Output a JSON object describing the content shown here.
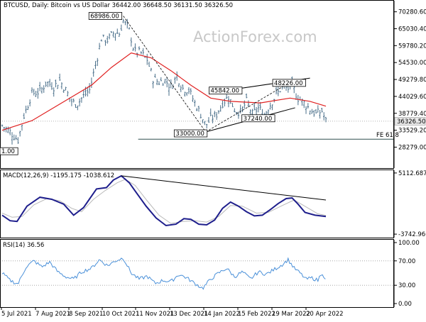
{
  "chart_data": [
    {
      "type": "candlestick",
      "symbol": "BTCUSD",
      "header": "BTCUSD, Daily:  Bitcoin vs US Dollar  36442.00 36648.50 36131.50 36326.50",
      "watermark": "ActionForex.com",
      "ylim": [
        22000,
        73500
      ],
      "y_ticks": [
        70280.6,
        65030.4,
        59780.2,
        54530.0,
        49279.8,
        44029.6,
        38779.4,
        33529.2,
        28279.0
      ],
      "y_tick_labels": [
        "70280.60",
        "65030.40",
        "59780.20",
        "54530.00",
        "49279.80",
        "44029.60",
        "38779.40",
        "33529.20",
        "28279.00"
      ],
      "last_price": 36326.5,
      "last_price_label": "36326.50",
      "x_labels": [
        "5 Jul 2021",
        "7 Aug 2021",
        "8 Sep 2021",
        "10 Oct 2021",
        "11 Nov 2021",
        "13 Dec 2021",
        "14 Jan 2022",
        "15 Feb 2022",
        "19 Mar 2022",
        "20 Apr 2022"
      ],
      "close_series": [
        {
          "day": 0,
          "close": 35000
        },
        {
          "day": 8,
          "close": 33000
        },
        {
          "day": 16,
          "close": 30500
        },
        {
          "day": 22,
          "close": 38000
        },
        {
          "day": 30,
          "close": 45000
        },
        {
          "day": 38,
          "close": 45500
        },
        {
          "day": 45,
          "close": 48500
        },
        {
          "day": 52,
          "close": 47000
        },
        {
          "day": 58,
          "close": 49000
        },
        {
          "day": 64,
          "close": 46000
        },
        {
          "day": 70,
          "close": 42500
        },
        {
          "day": 75,
          "close": 41500
        },
        {
          "day": 80,
          "close": 43500
        },
        {
          "day": 88,
          "close": 46000
        },
        {
          "day": 95,
          "close": 55000
        },
        {
          "day": 100,
          "close": 62000
        },
        {
          "day": 106,
          "close": 61500
        },
        {
          "day": 113,
          "close": 64000
        },
        {
          "day": 118,
          "close": 63500
        },
        {
          "day": 122,
          "close": 67500
        },
        {
          "day": 128,
          "close": 64500
        },
        {
          "day": 133,
          "close": 58000
        },
        {
          "day": 140,
          "close": 57500
        },
        {
          "day": 146,
          "close": 55500
        },
        {
          "day": 152,
          "close": 49500
        },
        {
          "day": 158,
          "close": 48500
        },
        {
          "day": 164,
          "close": 49000
        },
        {
          "day": 170,
          "close": 47000
        },
        {
          "day": 176,
          "close": 50500
        },
        {
          "day": 182,
          "close": 46500
        },
        {
          "day": 188,
          "close": 46000
        },
        {
          "day": 194,
          "close": 42000
        },
        {
          "day": 200,
          "close": 38500
        },
        {
          "day": 205,
          "close": 35000
        },
        {
          "day": 210,
          "close": 37000
        },
        {
          "day": 216,
          "close": 38500
        },
        {
          "day": 222,
          "close": 42000
        },
        {
          "day": 228,
          "close": 44000
        },
        {
          "day": 234,
          "close": 40000
        },
        {
          "day": 240,
          "close": 39000
        },
        {
          "day": 246,
          "close": 42500
        },
        {
          "day": 252,
          "close": 38500
        },
        {
          "day": 258,
          "close": 40500
        },
        {
          "day": 264,
          "close": 38500
        },
        {
          "day": 270,
          "close": 41500
        },
        {
          "day": 276,
          "close": 44500
        },
        {
          "day": 282,
          "close": 47000
        },
        {
          "day": 288,
          "close": 46500
        },
        {
          "day": 292,
          "close": 47500
        },
        {
          "day": 298,
          "close": 43500
        },
        {
          "day": 304,
          "close": 42000
        },
        {
          "day": 310,
          "close": 40000
        },
        {
          "day": 316,
          "close": 38500
        },
        {
          "day": 322,
          "close": 39500
        },
        {
          "day": 326,
          "close": 36326.5
        }
      ],
      "moving_average": [
        {
          "day": 0,
          "value": 33500
        },
        {
          "day": 30,
          "value": 36500
        },
        {
          "day": 60,
          "value": 42000
        },
        {
          "day": 90,
          "value": 47500
        },
        {
          "day": 110,
          "value": 53000
        },
        {
          "day": 130,
          "value": 57500
        },
        {
          "day": 150,
          "value": 56000
        },
        {
          "day": 170,
          "value": 52000
        },
        {
          "day": 190,
          "value": 47500
        },
        {
          "day": 210,
          "value": 43500
        },
        {
          "day": 230,
          "value": 42500
        },
        {
          "day": 260,
          "value": 42000
        },
        {
          "day": 290,
          "value": 43500
        },
        {
          "day": 310,
          "value": 42500
        },
        {
          "day": 326,
          "value": 41000
        }
      ],
      "annotations": [
        {
          "label": "68986.00",
          "day": 122,
          "price": 68986.0
        },
        {
          "label": "45842.00",
          "day": 225,
          "price": 45842.0
        },
        {
          "label": "48226.00",
          "day": 289,
          "price": 48226.0
        },
        {
          "label": "37240.00",
          "day": 258,
          "price": 37240.0
        },
        {
          "label": "33000.00",
          "day": 205,
          "price": 33000.0
        },
        {
          "label": "1.00",
          "day": 8,
          "price": 29000.0
        }
      ],
      "trendlines": [
        {
          "from": {
            "day": 122,
            "price": 68986
          },
          "to": {
            "day": 205,
            "price": 33000
          },
          "style": "dashed"
        },
        {
          "from": {
            "day": 205,
            "price": 33000
          },
          "to": {
            "day": 289,
            "price": 48226
          },
          "style": "dashed"
        },
        {
          "from": {
            "day": 225,
            "price": 45842
          },
          "to": {
            "day": 310,
            "price": 49700
          },
          "style": "solid"
        },
        {
          "from": {
            "day": 205,
            "price": 33000
          },
          "to": {
            "day": 295,
            "price": 40500
          },
          "style": "solid"
        }
      ],
      "fibonacci": {
        "label": "FE 61.8",
        "price": 30750,
        "from_day": 137,
        "to_day": 328
      }
    },
    {
      "type": "line",
      "title": "MACD(12,26,9) -1195.175 -1038.612",
      "ylim": [
        -3742.96,
        5112.687
      ],
      "y_tick_labels": [
        "5112.687",
        "-3742.960"
      ],
      "macd": [
        {
          "day": 0,
          "value": -1000
        },
        {
          "day": 8,
          "value": -1800
        },
        {
          "day": 15,
          "value": -1900
        },
        {
          "day": 25,
          "value": 300
        },
        {
          "day": 38,
          "value": 1600
        },
        {
          "day": 50,
          "value": 1300
        },
        {
          "day": 62,
          "value": 600
        },
        {
          "day": 72,
          "value": -1000
        },
        {
          "day": 82,
          "value": 100
        },
        {
          "day": 95,
          "value": 2800
        },
        {
          "day": 105,
          "value": 3000
        },
        {
          "day": 112,
          "value": 4100
        },
        {
          "day": 120,
          "value": 4700
        },
        {
          "day": 128,
          "value": 3700
        },
        {
          "day": 135,
          "value": 2300
        },
        {
          "day": 145,
          "value": 300
        },
        {
          "day": 155,
          "value": -1400
        },
        {
          "day": 165,
          "value": -2500
        },
        {
          "day": 175,
          "value": -2300
        },
        {
          "day": 183,
          "value": -1500
        },
        {
          "day": 190,
          "value": -1600
        },
        {
          "day": 198,
          "value": -2300
        },
        {
          "day": 206,
          "value": -2400
        },
        {
          "day": 214,
          "value": -1700
        },
        {
          "day": 222,
          "value": 0
        },
        {
          "day": 230,
          "value": 900
        },
        {
          "day": 238,
          "value": 300
        },
        {
          "day": 246,
          "value": -500
        },
        {
          "day": 254,
          "value": -1100
        },
        {
          "day": 262,
          "value": -1000
        },
        {
          "day": 270,
          "value": -200
        },
        {
          "day": 278,
          "value": 700
        },
        {
          "day": 286,
          "value": 1400
        },
        {
          "day": 292,
          "value": 1500
        },
        {
          "day": 298,
          "value": 600
        },
        {
          "day": 305,
          "value": -600
        },
        {
          "day": 315,
          "value": -1000
        },
        {
          "day": 326,
          "value": -1195.175
        }
      ],
      "signal": [
        {
          "day": 0,
          "value": -700
        },
        {
          "day": 10,
          "value": -1300
        },
        {
          "day": 20,
          "value": -1200
        },
        {
          "day": 32,
          "value": 500
        },
        {
          "day": 45,
          "value": 1400
        },
        {
          "day": 58,
          "value": 1100
        },
        {
          "day": 70,
          "value": 0
        },
        {
          "day": 80,
          "value": -500
        },
        {
          "day": 92,
          "value": 1300
        },
        {
          "day": 104,
          "value": 2600
        },
        {
          "day": 116,
          "value": 3700
        },
        {
          "day": 124,
          "value": 4200
        },
        {
          "day": 134,
          "value": 3300
        },
        {
          "day": 146,
          "value": 1100
        },
        {
          "day": 158,
          "value": -1000
        },
        {
          "day": 170,
          "value": -2200
        },
        {
          "day": 182,
          "value": -1900
        },
        {
          "day": 194,
          "value": -1800
        },
        {
          "day": 206,
          "value": -2000
        },
        {
          "day": 218,
          "value": -1200
        },
        {
          "day": 230,
          "value": 400
        },
        {
          "day": 242,
          "value": 300
        },
        {
          "day": 256,
          "value": -700
        },
        {
          "day": 268,
          "value": -600
        },
        {
          "day": 282,
          "value": 400
        },
        {
          "day": 294,
          "value": 1200
        },
        {
          "day": 306,
          "value": 200
        },
        {
          "day": 318,
          "value": -800
        },
        {
          "day": 326,
          "value": -1038.612
        }
      ],
      "trendline": {
        "from": {
          "day": 120,
          "value": 4700
        },
        "to": {
          "day": 326,
          "value": 1200
        }
      }
    },
    {
      "type": "line",
      "title": "RSI(14) 36.56",
      "ylim": [
        0,
        100
      ],
      "y_ticks": [
        100,
        70,
        30,
        0
      ],
      "y_tick_labels": [
        "100.00",
        "70.00",
        "30.00",
        "0.00"
      ],
      "rsi": [
        {
          "day": 0,
          "value": 50
        },
        {
          "day": 8,
          "value": 38
        },
        {
          "day": 16,
          "value": 32
        },
        {
          "day": 24,
          "value": 60
        },
        {
          "day": 32,
          "value": 70
        },
        {
          "day": 40,
          "value": 60
        },
        {
          "day": 48,
          "value": 68
        },
        {
          "day": 56,
          "value": 52
        },
        {
          "day": 64,
          "value": 44
        },
        {
          "day": 72,
          "value": 40
        },
        {
          "day": 80,
          "value": 52
        },
        {
          "day": 90,
          "value": 58
        },
        {
          "day": 98,
          "value": 72
        },
        {
          "day": 106,
          "value": 62
        },
        {
          "day": 114,
          "value": 70
        },
        {
          "day": 122,
          "value": 75
        },
        {
          "day": 130,
          "value": 50
        },
        {
          "day": 138,
          "value": 40
        },
        {
          "day": 146,
          "value": 45
        },
        {
          "day": 154,
          "value": 33
        },
        {
          "day": 162,
          "value": 38
        },
        {
          "day": 170,
          "value": 36
        },
        {
          "day": 178,
          "value": 48
        },
        {
          "day": 186,
          "value": 42
        },
        {
          "day": 194,
          "value": 33
        },
        {
          "day": 202,
          "value": 25
        },
        {
          "day": 210,
          "value": 40
        },
        {
          "day": 218,
          "value": 50
        },
        {
          "day": 226,
          "value": 58
        },
        {
          "day": 234,
          "value": 44
        },
        {
          "day": 242,
          "value": 52
        },
        {
          "day": 250,
          "value": 40
        },
        {
          "day": 258,
          "value": 52
        },
        {
          "day": 266,
          "value": 48
        },
        {
          "day": 274,
          "value": 56
        },
        {
          "day": 282,
          "value": 64
        },
        {
          "day": 288,
          "value": 72
        },
        {
          "day": 294,
          "value": 58
        },
        {
          "day": 300,
          "value": 50
        },
        {
          "day": 306,
          "value": 40
        },
        {
          "day": 312,
          "value": 42
        },
        {
          "day": 318,
          "value": 38
        },
        {
          "day": 322,
          "value": 52
        },
        {
          "day": 326,
          "value": 36.56
        }
      ]
    }
  ],
  "colors": {
    "candles": "#4a6f8a",
    "moving_average": "#e02020",
    "macd": "#1e1e8c",
    "signal": "#b9b9b9",
    "rsi": "#4a90d9",
    "trendline": "#000000",
    "fibonacci": "#2f4f4f",
    "grid": "#000000",
    "last_price_box": "#e8e8e8"
  }
}
